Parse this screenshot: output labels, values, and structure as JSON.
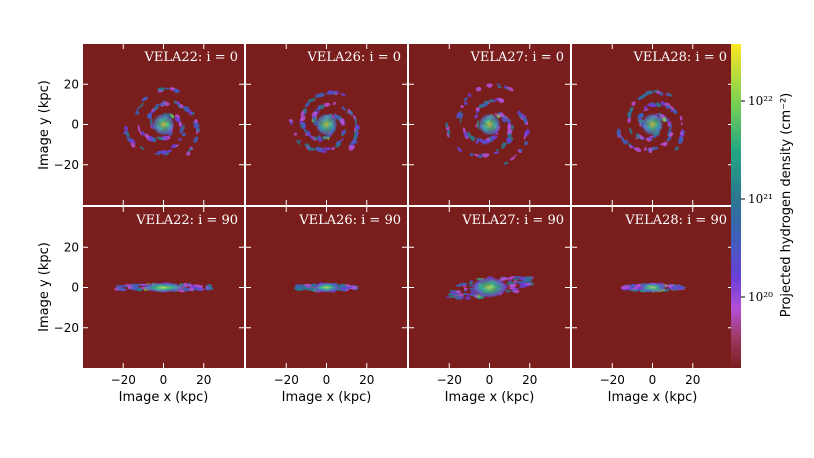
{
  "figure": {
    "panels": [
      {
        "id": "vela22-i0",
        "galaxy": "VELA22",
        "label": "VELA22: i = 0",
        "inclination": 0
      },
      {
        "id": "vela26-i0",
        "galaxy": "VELA26",
        "label": "VELA26: i = 0",
        "inclination": 0
      },
      {
        "id": "vela27-i0",
        "galaxy": "VELA27",
        "label": "VELA27: i = 0",
        "inclination": 0
      },
      {
        "id": "vela28-i0",
        "galaxy": "VELA28",
        "label": "VELA28: i = 0",
        "inclination": 0
      },
      {
        "id": "vela22-i90",
        "galaxy": "VELA22",
        "label": "VELA22: i = 90",
        "inclination": 90
      },
      {
        "id": "vela26-i90",
        "galaxy": "VELA26",
        "label": "VELA26: i = 90",
        "inclination": 90
      },
      {
        "id": "vela27-i90",
        "galaxy": "VELA27",
        "label": "VELA27: i = 90",
        "inclination": 90
      },
      {
        "id": "vela28-i90",
        "galaxy": "VELA28",
        "label": "VELA28: i = 90",
        "inclination": 90
      }
    ],
    "axes": {
      "xlabel": "Image x  (kpc)",
      "ylabel": "Image y  (kpc)",
      "x_ticks": [
        "−20",
        "0",
        "20"
      ],
      "y_ticks": [
        "20",
        "0",
        "−20"
      ]
    },
    "colorbar": {
      "label": "Projected hydrogen density  (cm⁻²)",
      "ticks": [
        "10²²",
        "10²¹",
        "10²⁰"
      ],
      "colors": [
        "#fde725",
        "#35b779",
        "#26828e",
        "#3b528b",
        "#6a3bd0",
        "#b24fd3",
        "#7a1d1d"
      ],
      "colormap": "yellow-green-teal-blue-purple-darkred"
    },
    "colors": {
      "background": "#7a1d1d",
      "panel_text": "#ffffff"
    }
  }
}
